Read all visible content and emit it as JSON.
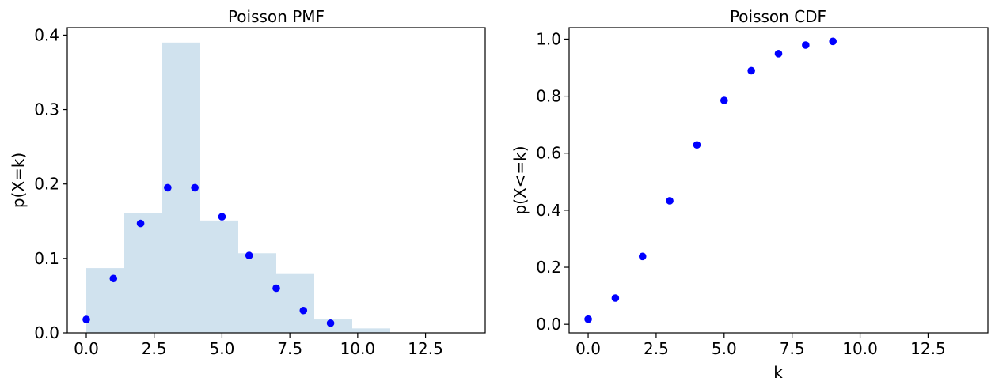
{
  "chart_data": [
    {
      "type": "bar",
      "title": "Poisson PMF",
      "xlabel": "",
      "ylabel": "p(X=k)",
      "xlim": [
        -0.7,
        14.7
      ],
      "ylim": [
        0,
        0.41
      ],
      "xticks": [
        0.0,
        2.5,
        5.0,
        7.5,
        10.0,
        12.5
      ],
      "xtick_labels": [
        "0.0",
        "2.5",
        "5.0",
        "7.5",
        "10.0",
        "12.5"
      ],
      "yticks": [
        0.0,
        0.1,
        0.2,
        0.3,
        0.4
      ],
      "ytick_labels": [
        "0.0",
        "0.1",
        "0.2",
        "0.3",
        "0.4"
      ],
      "grid": false,
      "histogram": {
        "bin_edges": [
          0.0,
          1.4,
          2.8,
          4.2,
          5.6,
          7.0,
          8.4,
          9.8,
          11.2
        ],
        "values": [
          0.087,
          0.161,
          0.39,
          0.151,
          0.107,
          0.08,
          0.018,
          0.006
        ],
        "color": "#d0e2ee"
      },
      "points": {
        "x": [
          0,
          1,
          2,
          3,
          4,
          5,
          6,
          7,
          8,
          9
        ],
        "y": [
          0.018,
          0.073,
          0.147,
          0.195,
          0.195,
          0.156,
          0.104,
          0.06,
          0.03,
          0.013
        ],
        "color": "#0000ff"
      }
    },
    {
      "type": "scatter",
      "title": "Poisson CDF",
      "xlabel": "k",
      "ylabel": "p(X<=k)",
      "xlim": [
        -0.7,
        14.7
      ],
      "ylim": [
        -0.03,
        1.04
      ],
      "xticks": [
        0.0,
        2.5,
        5.0,
        7.5,
        10.0,
        12.5
      ],
      "xtick_labels": [
        "0.0",
        "2.5",
        "5.0",
        "7.5",
        "10.0",
        "12.5"
      ],
      "yticks": [
        0.0,
        0.2,
        0.4,
        0.6,
        0.8,
        1.0
      ],
      "ytick_labels": [
        "0.0",
        "0.2",
        "0.4",
        "0.6",
        "0.8",
        "1.0"
      ],
      "grid": false,
      "points": {
        "x": [
          0,
          1,
          2,
          3,
          4,
          5,
          6,
          7,
          8,
          9
        ],
        "y": [
          0.018,
          0.092,
          0.238,
          0.433,
          0.629,
          0.785,
          0.889,
          0.949,
          0.979,
          0.992
        ],
        "color": "#0000ff"
      }
    }
  ]
}
